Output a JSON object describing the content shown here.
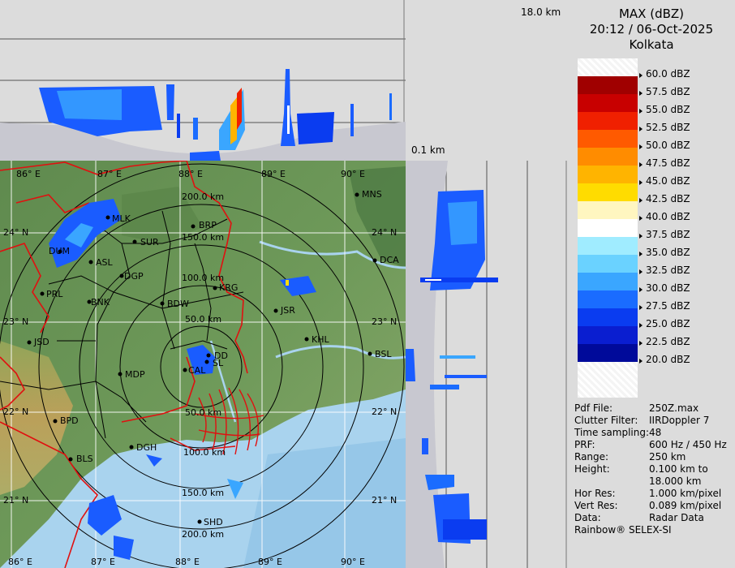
{
  "header": {
    "title": "MAX (dBZ)",
    "datetime": "20:12 / 06-Oct-2025",
    "station": "Kolkata"
  },
  "height_labels": {
    "top": "18.0 km",
    "bottom": "0.1 km"
  },
  "colors": {
    "land": "#6f9a5a",
    "sea": "#a9d3ee",
    "border": "#e01010",
    "side_panel_bg": "#dcdcdc"
  },
  "color_scale": [
    {
      "label": "60.0 dBZ",
      "color": "#ffffff"
    },
    {
      "label": "57.5 dBZ",
      "color": "#a00000"
    },
    {
      "label": "55.0 dBZ",
      "color": "#c80000"
    },
    {
      "label": "52.5 dBZ",
      "color": "#f02000"
    },
    {
      "label": "50.0 dBZ",
      "color": "#ff5a00"
    },
    {
      "label": "47.5 dBZ",
      "color": "#ff8c00"
    },
    {
      "label": "45.0 dBZ",
      "color": "#ffb400"
    },
    {
      "label": "42.5 dBZ",
      "color": "#ffdc00"
    },
    {
      "label": "40.0 dBZ",
      "color": "#fff6c0"
    },
    {
      "label": "37.5 dBZ",
      "color": "#ffffff"
    },
    {
      "label": "35.0 dBZ",
      "color": "#a0ecff"
    },
    {
      "label": "32.5 dBZ",
      "color": "#6ad2ff"
    },
    {
      "label": "30.0 dBZ",
      "color": "#3aa6ff"
    },
    {
      "label": "27.5 dBZ",
      "color": "#1a6cff"
    },
    {
      "label": "25.0 dBZ",
      "color": "#0a3cf0"
    },
    {
      "label": "22.5 dBZ",
      "color": "#0a1ed0"
    },
    {
      "label": "20.0 dBZ",
      "color": "#000a9a"
    }
  ],
  "info": [
    {
      "key": "Pdf File:",
      "value": "250Z.max"
    },
    {
      "key": "Clutter Filter:",
      "value": "IIRDoppler 7"
    },
    {
      "key": "Time sampling:",
      "value": "48"
    },
    {
      "key": "PRF:",
      "value": "600 Hz / 450 Hz"
    },
    {
      "key": "Range:",
      "value": "250 km"
    },
    {
      "key": "Height:",
      "value": "0.100 km to"
    },
    {
      "key": "",
      "value": "18.000 km"
    },
    {
      "key": "Hor Res:",
      "value": "1.000 km/pixel"
    },
    {
      "key": "Vert Res:",
      "value": "0.089 km/pixel"
    },
    {
      "key": "Data:",
      "value": "Radar Data"
    }
  ],
  "footer": "Rainbow® SELEX-SI",
  "map": {
    "lon_labels": [
      "86° E",
      "87° E",
      "88° E",
      "89° E",
      "90° E"
    ],
    "lat_labels": [
      "24° N",
      "23° N",
      "22° N",
      "21° N"
    ],
    "range_labels": [
      "50.0 km",
      "100.0 km",
      "150.0 km",
      "200.0 km"
    ],
    "stations": [
      "MNS",
      "BRP",
      "MLK",
      "SUR",
      "DUM",
      "ASL",
      "DGP",
      "PRL",
      "KRG",
      "BNK",
      "BDW",
      "JSR",
      "DCA",
      "JSD",
      "KHL",
      "BSL",
      "DD",
      "SL",
      "MDP",
      "CAL",
      "BPD",
      "DGH",
      "BLS",
      "SHD"
    ]
  }
}
